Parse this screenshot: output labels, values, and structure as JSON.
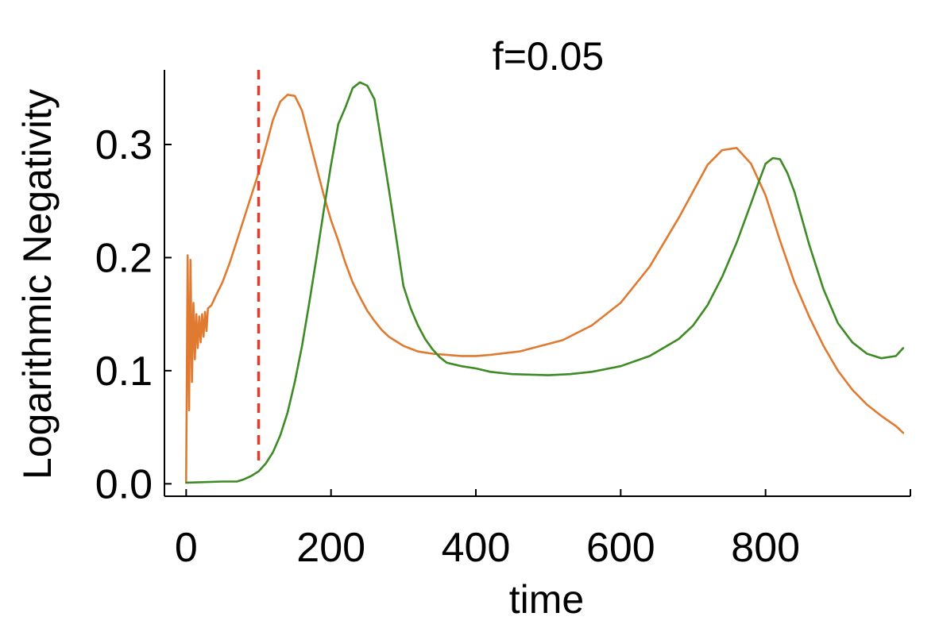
{
  "chart_data": {
    "type": "line",
    "title": "f=0.05",
    "xlabel": "time",
    "ylabel": "Logarithmic Negativity",
    "xlim": [
      -30,
      1000
    ],
    "ylim": [
      -0.011,
      0.366
    ],
    "x_ticks": [
      0,
      200,
      400,
      600,
      800,
      1000
    ],
    "x_tick_labels": [
      "0",
      "200",
      "400",
      "600",
      "800",
      ""
    ],
    "y_ticks": [
      0.0,
      0.1,
      0.2,
      0.3
    ],
    "y_tick_labels": [
      "0.0",
      "0.1",
      "0.2",
      "0.3"
    ],
    "grid": false,
    "legend": "none",
    "vline": {
      "x": 100,
      "color": "#e03c31",
      "style": "dashed"
    },
    "series": [
      {
        "color": "#df7a30",
        "x": [
          0,
          2,
          4,
          6,
          8,
          10,
          12,
          14,
          16,
          18,
          20,
          22,
          24,
          26,
          28,
          30,
          35,
          40,
          50,
          60,
          70,
          80,
          90,
          100,
          110,
          120,
          130,
          140,
          150,
          160,
          170,
          180,
          190,
          200,
          210,
          220,
          230,
          240,
          250,
          260,
          270,
          280,
          290,
          300,
          320,
          340,
          360,
          380,
          400,
          420,
          460,
          520,
          560,
          600,
          640,
          680,
          720,
          740,
          760,
          780,
          800,
          820,
          840,
          860,
          880,
          900,
          920,
          940,
          960,
          980,
          990
        ],
        "values": [
          0.002,
          0.202,
          0.065,
          0.198,
          0.09,
          0.16,
          0.11,
          0.15,
          0.12,
          0.148,
          0.125,
          0.15,
          0.13,
          0.152,
          0.135,
          0.155,
          0.158,
          0.165,
          0.178,
          0.195,
          0.215,
          0.235,
          0.255,
          0.275,
          0.298,
          0.322,
          0.338,
          0.344,
          0.343,
          0.33,
          0.305,
          0.28,
          0.255,
          0.233,
          0.215,
          0.195,
          0.178,
          0.165,
          0.153,
          0.144,
          0.136,
          0.13,
          0.126,
          0.122,
          0.117,
          0.115,
          0.114,
          0.113,
          0.113,
          0.114,
          0.117,
          0.127,
          0.14,
          0.16,
          0.192,
          0.235,
          0.282,
          0.295,
          0.297,
          0.283,
          0.255,
          0.215,
          0.178,
          0.148,
          0.122,
          0.1,
          0.083,
          0.07,
          0.06,
          0.051,
          0.045
        ]
      },
      {
        "color": "#3e8a25",
        "x": [
          0,
          50,
          70,
          80,
          90,
          100,
          110,
          120,
          130,
          140,
          150,
          160,
          170,
          180,
          190,
          200,
          210,
          220,
          230,
          240,
          250,
          260,
          270,
          280,
          290,
          300,
          310,
          320,
          330,
          340,
          350,
          360,
          380,
          400,
          420,
          450,
          500,
          530,
          560,
          600,
          640,
          680,
          700,
          720,
          740,
          760,
          780,
          790,
          800,
          810,
          820,
          830,
          840,
          860,
          880,
          900,
          920,
          940,
          960,
          980,
          990
        ],
        "values": [
          0.001,
          0.002,
          0.002,
          0.004,
          0.007,
          0.011,
          0.018,
          0.028,
          0.043,
          0.063,
          0.09,
          0.122,
          0.16,
          0.2,
          0.242,
          0.282,
          0.318,
          0.333,
          0.35,
          0.355,
          0.352,
          0.34,
          0.3,
          0.26,
          0.218,
          0.175,
          0.155,
          0.14,
          0.128,
          0.119,
          0.112,
          0.107,
          0.104,
          0.102,
          0.099,
          0.097,
          0.096,
          0.097,
          0.099,
          0.104,
          0.113,
          0.128,
          0.14,
          0.158,
          0.183,
          0.213,
          0.248,
          0.266,
          0.283,
          0.288,
          0.287,
          0.275,
          0.258,
          0.212,
          0.172,
          0.142,
          0.125,
          0.115,
          0.111,
          0.113,
          0.12
        ]
      }
    ]
  }
}
